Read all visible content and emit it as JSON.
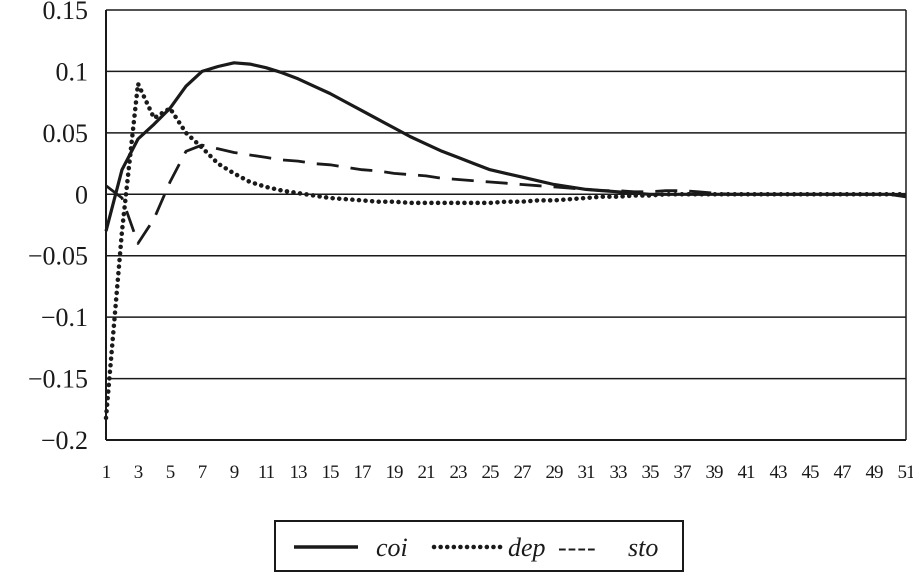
{
  "chart_data": {
    "type": "line",
    "title": "",
    "xlabel": "",
    "ylabel": "",
    "ylim": [
      -0.2,
      0.15
    ],
    "xlim": [
      1,
      51
    ],
    "grid": "horizontal",
    "legend_position": "bottom",
    "y_ticks": [
      "0.15",
      "0.1",
      "0.05",
      "0",
      "−0.05",
      "−0.1",
      "−0.15",
      "−0.2"
    ],
    "x_tick_labels": [
      "1",
      "3",
      "5",
      "7",
      "9",
      "11",
      "13",
      "15",
      "17",
      "19",
      "21",
      "23",
      "25",
      "27",
      "29",
      "31",
      "33",
      "35",
      "37",
      "39",
      "41",
      "43",
      "45",
      "47",
      "49",
      "51"
    ],
    "x": [
      1,
      2,
      3,
      4,
      5,
      6,
      7,
      8,
      9,
      10,
      11,
      12,
      13,
      14,
      15,
      16,
      17,
      18,
      19,
      20,
      21,
      22,
      23,
      24,
      25,
      26,
      27,
      28,
      29,
      30,
      31,
      32,
      33,
      34,
      35,
      36,
      37,
      38,
      39,
      40,
      41,
      42,
      43,
      44,
      45,
      46,
      47,
      48,
      49,
      50,
      51
    ],
    "series": [
      {
        "name": "coi",
        "style": "solid",
        "values": [
          -0.03,
          0.02,
          0.045,
          0.057,
          0.07,
          0.088,
          0.1,
          0.104,
          0.107,
          0.106,
          0.103,
          0.099,
          0.094,
          0.088,
          0.082,
          0.075,
          0.068,
          0.061,
          0.054,
          0.047,
          0.041,
          0.035,
          0.03,
          0.025,
          0.02,
          0.017,
          0.014,
          0.011,
          0.008,
          0.006,
          0.004,
          0.003,
          0.002,
          0.001,
          0.0,
          0.0,
          0.0,
          0.0,
          0.0,
          0.0,
          0.0,
          0.0,
          0.0,
          0.0,
          0.0,
          0.0,
          0.0,
          0.0,
          0.0,
          0.0,
          -0.002
        ]
      },
      {
        "name": "dep",
        "style": "dotted",
        "values": [
          -0.182,
          -0.03,
          0.09,
          0.062,
          0.07,
          0.05,
          0.038,
          0.025,
          0.017,
          0.01,
          0.006,
          0.003,
          0.001,
          -0.001,
          -0.003,
          -0.004,
          -0.005,
          -0.006,
          -0.006,
          -0.007,
          -0.007,
          -0.007,
          -0.007,
          -0.007,
          -0.007,
          -0.006,
          -0.006,
          -0.005,
          -0.005,
          -0.004,
          -0.003,
          -0.002,
          -0.002,
          -0.001,
          -0.001,
          0.0,
          0.0,
          0.0,
          0.0,
          0.0,
          0.0,
          0.0,
          0.0,
          0.0,
          0.0,
          0.0,
          0.0,
          0.0,
          0.0,
          0.0,
          0.0
        ]
      },
      {
        "name": "sto",
        "style": "dashed",
        "values": [
          0.007,
          -0.003,
          -0.04,
          -0.02,
          0.01,
          0.035,
          0.04,
          0.037,
          0.034,
          0.032,
          0.03,
          0.028,
          0.027,
          0.025,
          0.024,
          0.022,
          0.02,
          0.019,
          0.017,
          0.016,
          0.015,
          0.013,
          0.012,
          0.011,
          0.01,
          0.009,
          0.008,
          0.007,
          0.006,
          0.005,
          0.004,
          0.003,
          0.003,
          0.002,
          0.002,
          0.003,
          0.003,
          0.002,
          0.001,
          0.0,
          0.0,
          0.0,
          0.0,
          0.0,
          0.0,
          0.0,
          0.0,
          0.0,
          0.0,
          0.0,
          0.0
        ]
      }
    ],
    "legend": {
      "items": [
        "coi",
        "dep",
        "sto"
      ],
      "separator": "----"
    }
  }
}
